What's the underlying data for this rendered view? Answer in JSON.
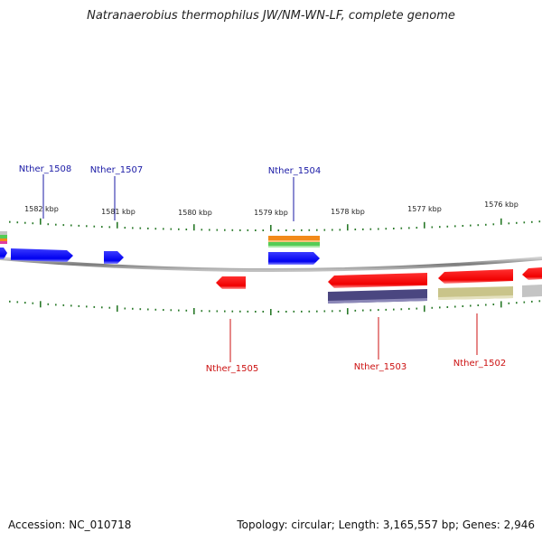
{
  "title": "Natranaerobius thermophilus JW/NM-WN-LF, complete genome",
  "footer": {
    "accession": "Accession: NC_010718",
    "summary": "Topology: circular; Length: 3,165,557 bp; Genes: 2,946"
  },
  "colors": {
    "forward_gene": "#0000ff",
    "reverse_gene": "#ff0000",
    "forward_label": "#1a1aa6",
    "reverse_label": "#cc1111",
    "tick": "#2a7a2a",
    "backbone": "#888888",
    "feature_orange": "#f28a1a",
    "feature_green": "#55cc55",
    "feature_navy": "#4a4680",
    "feature_khaki": "#c9c48a",
    "feature_grey": "#c4c4c4"
  },
  "ticks": [
    {
      "label": "1582 kbp"
    },
    {
      "label": "1581 kbp"
    },
    {
      "label": "1580 kbp"
    },
    {
      "label": "1579 kbp"
    },
    {
      "label": "1578 kbp"
    },
    {
      "label": "1577 kbp"
    },
    {
      "label": "1576 kbp"
    }
  ],
  "genes_forward": [
    {
      "name": "Nther_1508"
    },
    {
      "name": "Nther_1507"
    },
    {
      "name": "Nther_1504"
    }
  ],
  "genes_reverse": [
    {
      "name": "Nther_1505"
    },
    {
      "name": "Nther_1503"
    },
    {
      "name": "Nther_1502"
    }
  ]
}
